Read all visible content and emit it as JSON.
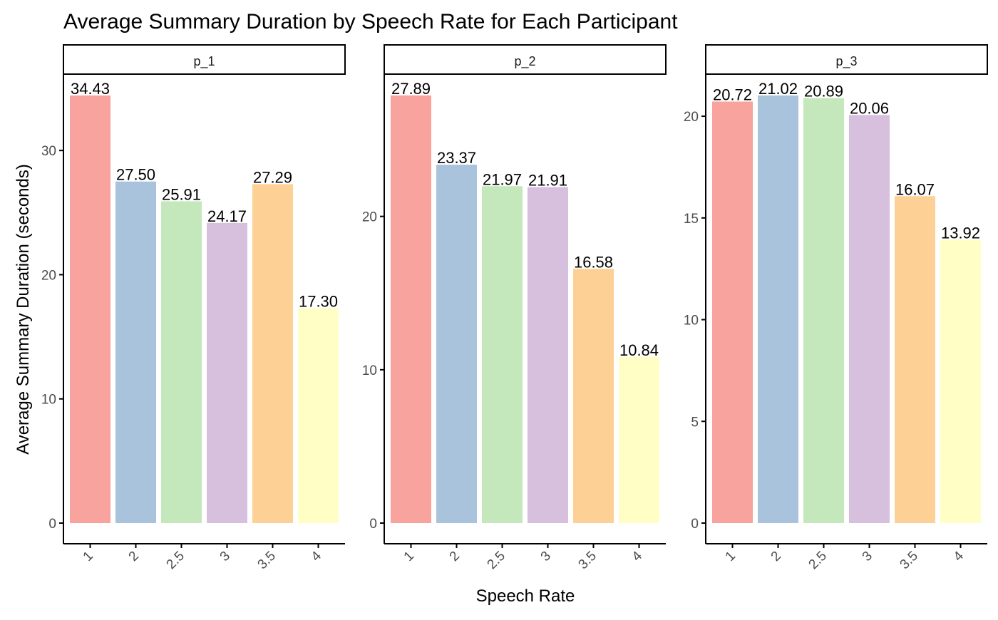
{
  "chart_data": {
    "type": "bar",
    "title": "Average Summary Duration by Speech Rate for Each Participant",
    "xlabel": "Speech Rate",
    "ylabel": "Average Summary Duration (seconds)",
    "categories": [
      "1",
      "2",
      "2.5",
      "3",
      "3.5",
      "4"
    ],
    "colors": [
      "#F8A39E",
      "#A9C3DD",
      "#C4E8BC",
      "#D7BFDE",
      "#FDD196",
      "#FFFFC5"
    ],
    "grid": false,
    "legend": "none",
    "panels": [
      {
        "name": "p_1",
        "values": [
          34.43,
          27.5,
          25.91,
          24.17,
          27.29,
          17.3
        ],
        "labels": [
          "34.43",
          "27.50",
          "25.91",
          "24.17",
          "27.29",
          "17.30"
        ],
        "ylim": [
          0,
          36.15
        ],
        "yticks": [
          0,
          10,
          20,
          30
        ],
        "ytick_labels": [
          "0",
          "10",
          "20",
          "30"
        ]
      },
      {
        "name": "p_2",
        "values": [
          27.89,
          23.37,
          21.97,
          21.91,
          16.58,
          10.84
        ],
        "labels": [
          "27.89",
          "23.37",
          "21.97",
          "21.91",
          "16.58",
          "10.84"
        ],
        "ylim": [
          0,
          29.28
        ],
        "yticks": [
          0,
          10,
          20
        ],
        "ytick_labels": [
          "0",
          "10",
          "20"
        ]
      },
      {
        "name": "p_3",
        "values": [
          20.72,
          21.02,
          20.89,
          20.06,
          16.07,
          13.92
        ],
        "labels": [
          "20.72",
          "21.02",
          "20.89",
          "20.06",
          "16.07",
          "13.92"
        ],
        "ylim": [
          0,
          22.07
        ],
        "yticks": [
          0,
          5,
          10,
          15,
          20
        ],
        "ytick_labels": [
          "0",
          "5",
          "10",
          "15",
          "20"
        ]
      }
    ]
  }
}
